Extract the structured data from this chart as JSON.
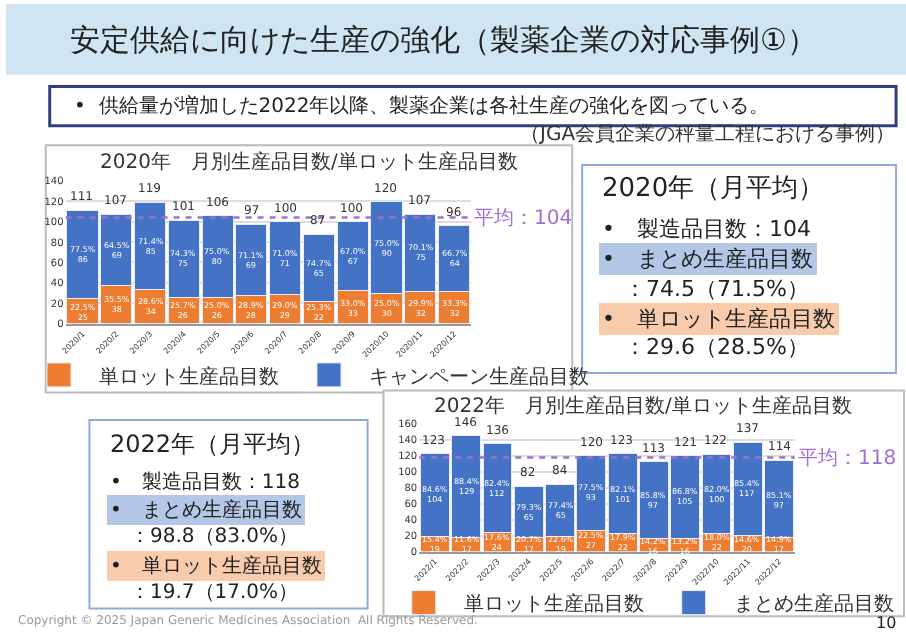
{
  "chart_data": [
    {
      "type": "other",
      "title": "安定供給に向けた生産の強化（製薬企業の対応事例①）",
      "subtitle": "•  供給量が増加した2022年以降、製薬企業は各社生産の強化を図っている。",
      "annotations": [
        "（JGA会員企業の秤量工程における事例）",
        "Copyright © 2025 Japan Generic Medicines Association  All Rights Reserved.",
        "10"
      ]
    },
    {
      "type": "bar",
      "stacked": true,
      "title": "2020年　月別生産品目数/単ロット生産品目数",
      "categories": [
        "2020/1",
        "2020/2",
        "2020/3",
        "2020/4",
        "2020/5",
        "2020/6",
        "2020/7",
        "2020/8",
        "2020/9",
        "2020/10",
        "2020/11",
        "2020/12"
      ],
      "series": [
        {
          "name": "単ロット生産品目数",
          "color": "#ed7d31",
          "values": [
            25,
            38,
            34,
            26,
            26,
            28,
            29,
            22,
            33,
            30,
            32,
            32
          ],
          "value_labels": [
            "22.5%\n25",
            "35.5%\n38",
            "28.6%\n34",
            "25.7%\n26",
            "25.0%\n26",
            "28.9%\n28",
            "29.0%\n29",
            "25.3%\n22",
            "33.0%\n33",
            "25.0%\n30",
            "29.9%\n32",
            "33.3%\n32"
          ]
        },
        {
          "name": "キャンペーン生産品目数",
          "color": "#4472c4",
          "values": [
            86,
            69,
            85,
            75,
            80,
            69,
            71,
            65,
            67,
            90,
            75,
            64
          ],
          "value_labels": [
            "77.5%\n86",
            "64.5%\n69",
            "71.4%\n85",
            "74.3%\n75",
            "75.0%\n80",
            "71.1%\n69",
            "71.0%\n71",
            "74.7%\n65",
            "67.0%\n67",
            "75.0%\n90",
            "70.1%\n75",
            "66.7%\n64"
          ]
        }
      ],
      "totals": [
        "111",
        "107",
        "119",
        "101",
        "106",
        "97",
        "100",
        "87",
        "100",
        "120",
        "107",
        "96"
      ],
      "ylim": [
        0,
        140
      ],
      "yticks": [
        0,
        20,
        40,
        60,
        80,
        100,
        120,
        140
      ],
      "grid": "y",
      "legend": "bottom",
      "ref_lines": [
        {
          "axis": "y",
          "value": 104,
          "label": "平均：104",
          "color": "#a070d0",
          "line_style": "dotted"
        }
      ]
    },
    {
      "type": "other",
      "title": "2020年（月平均）",
      "annotations": [
        "•　製造品目数：104",
        "•　まとめ生産品目数",
        "　：74.5（71.5%）",
        "•　単ロット生産品目数",
        "　：29.6（28.5%）"
      ]
    },
    {
      "type": "bar",
      "stacked": true,
      "title": "2022年　月別生産品目数/単ロット生産品目数",
      "categories": [
        "2022/1",
        "2022/2",
        "2022/3",
        "2022/4",
        "2022/5",
        "2022/6",
        "2022/7",
        "2022/8",
        "2022/9",
        "2022/10",
        "2022/11",
        "2022/12"
      ],
      "series": [
        {
          "name": "単ロット生産品目数",
          "color": "#ed7d31",
          "values": [
            19,
            17,
            24,
            17,
            19,
            27,
            22,
            16,
            16,
            22,
            20,
            17
          ],
          "value_labels": [
            "15.4%\n19",
            "11.6%\n17",
            "17.6%\n24",
            "20.7%\n17",
            "22.6%\n19",
            "22.5%\n27",
            "17.9%\n22",
            "14.2%\n16",
            "13.2%\n16",
            "18.0%\n22",
            "14.6%\n20",
            "14.9%\n17"
          ]
        },
        {
          "name": "まとめ生産品目数",
          "color": "#4472c4",
          "values": [
            104,
            129,
            112,
            65,
            65,
            93,
            101,
            97,
            105,
            100,
            117,
            97
          ],
          "value_labels": [
            "84.6%\n104",
            "88.4%\n129",
            "82.4%\n112",
            "79.3%\n65",
            "77.4%\n65",
            "77.5%\n93",
            "82.1%\n101",
            "85.8%\n97",
            "86.8%\n105",
            "82.0%\n100",
            "85.4%\n117",
            "85.1%\n97"
          ]
        }
      ],
      "totals": [
        "123",
        "146",
        "136",
        "82",
        "84",
        "120",
        "123",
        "113",
        "121",
        "122",
        "137",
        "114"
      ],
      "ylim": [
        0,
        160
      ],
      "yticks": [
        0,
        20,
        40,
        60,
        80,
        100,
        120,
        140,
        160
      ],
      "grid": "y",
      "legend": "bottom",
      "ref_lines": [
        {
          "axis": "y",
          "value": 118,
          "label": "平均：118",
          "color": "#a070d0",
          "line_style": "dotted"
        }
      ]
    },
    {
      "type": "other",
      "title": "2022年（月平均）",
      "annotations": [
        "•　製造品目数：118",
        "•　まとめ生産品目数",
        "　：98.8（83.0%）",
        "•　単ロット生産品目数",
        "　：19.7（17.0%）"
      ]
    }
  ]
}
